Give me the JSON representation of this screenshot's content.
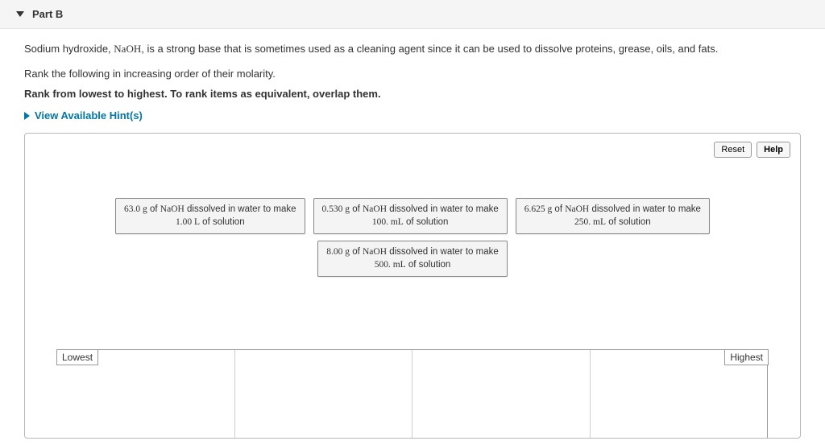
{
  "header": {
    "part_label": "Part B"
  },
  "description": {
    "pre_text": "Sodium hydroxide, ",
    "chemical": "NaOH",
    "post_text": ", is a strong base that is sometimes used as a cleaning agent since it can be used to dissolve proteins, grease, oils, and fats."
  },
  "instructions": {
    "line1": "Rank the following in increasing order of their molarity.",
    "line2": "Rank from lowest to highest. To rank items as equivalent, overlap them."
  },
  "hints": {
    "label": "View Available Hint(s)"
  },
  "workspace": {
    "reset_label": "Reset",
    "help_label": "Help",
    "rank_low": "Lowest",
    "rank_high": "Highest"
  },
  "items": {
    "a": {
      "mass": "63.0 g",
      "chem": "NaOH",
      "mid": " dissolved in water to make ",
      "vol": "1.00 L",
      "tail": " of solution"
    },
    "b": {
      "mass": "0.530 g",
      "chem": "NaOH",
      "mid": " dissolved in water to make ",
      "vol": "100. mL",
      "tail": " of solution"
    },
    "c": {
      "mass": "6.625 g",
      "chem": "NaOH",
      "mid": " dissolved in water to make ",
      "vol": "250. mL",
      "tail": " of solution"
    },
    "d": {
      "mass": "8.00 g",
      "chem": "NaOH",
      "mid": " dissolved in water to make ",
      "vol": "500. mL",
      "tail": " of solution"
    }
  },
  "colors": {
    "link": "#0077aa",
    "border": "#b8b8b8",
    "item_bg": "#f4f4f4",
    "header_bg": "#f5f5f5"
  }
}
